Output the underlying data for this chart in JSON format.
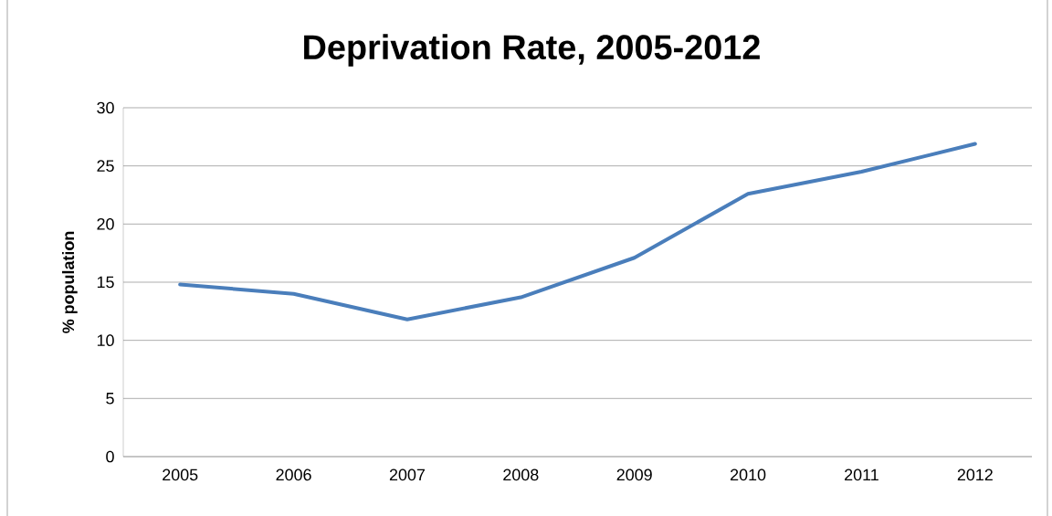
{
  "chart_data": {
    "type": "line",
    "title": "Deprivation Rate, 2005-2012",
    "ylabel": "% population",
    "categories": [
      "2005",
      "2006",
      "2007",
      "2008",
      "2009",
      "2010",
      "2011",
      "2012"
    ],
    "series": [
      {
        "color": "#4a7ebb",
        "values": [
          14.8,
          14.0,
          11.8,
          13.7,
          17.1,
          22.6,
          24.5,
          26.9
        ]
      }
    ],
    "ylim": [
      0,
      30
    ],
    "yticks": [
      0,
      5,
      10,
      15,
      20,
      25,
      30
    ],
    "grid": "y",
    "marker": "none",
    "line_style": "solid"
  }
}
